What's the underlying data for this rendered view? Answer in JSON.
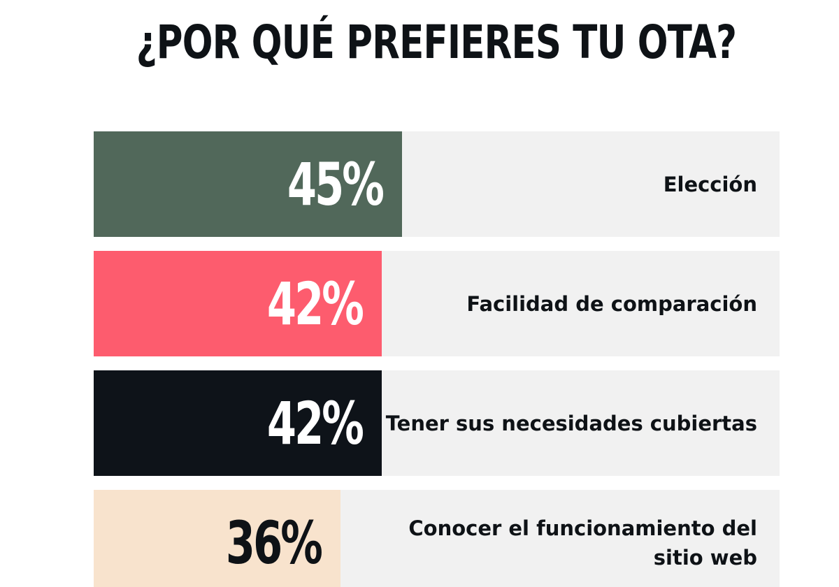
{
  "chart_data": {
    "type": "bar",
    "orientation": "horizontal",
    "title": "¿POR QUÉ PREFIERES TU OTA?",
    "categories": [
      "Elección",
      "Facilidad de comparación",
      "Tener sus necesidades cubiertas",
      "Conocer el funcionamiento del sitio web"
    ],
    "values": [
      45,
      42,
      42,
      36
    ],
    "value_labels": [
      "45%",
      "42%",
      "42%",
      "36%"
    ],
    "unit": "%",
    "xlim": [
      0,
      100
    ],
    "grid": false,
    "legend": "none",
    "bar_colors": [
      "#51685a",
      "#fd5c6e",
      "#0e1319",
      "#f8e3cd"
    ],
    "value_label_colors": [
      "#ffffff",
      "#ffffff",
      "#ffffff",
      "#0e1216"
    ],
    "track_color": "#f1f1f1"
  }
}
